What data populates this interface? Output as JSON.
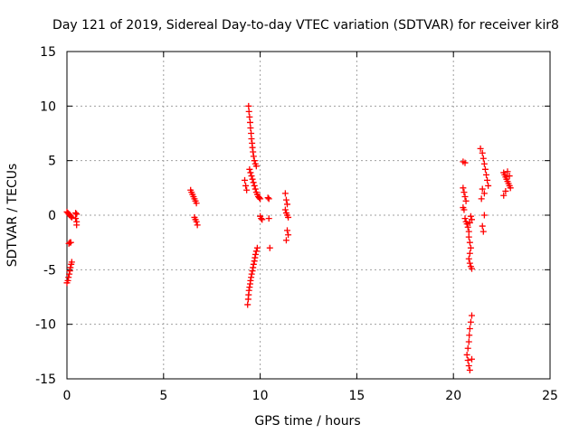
{
  "chart_data": {
    "type": "scatter",
    "title": "Day 121 of 2019, Sidereal Day-to-day VTEC variation (SDTVAR) for receiver kir8",
    "xlabel": "GPS time / hours",
    "ylabel": "SDTVAR / TECUs",
    "xlim": [
      0,
      25
    ],
    "ylim": [
      -15,
      15
    ],
    "xticks": [
      "0",
      "5",
      "10",
      "15",
      "20",
      "25"
    ],
    "yticks": [
      "15",
      "10",
      "5",
      "0",
      "-5",
      "-10",
      "-15"
    ],
    "xtick_values": [
      0,
      5,
      10,
      15,
      20,
      25
    ],
    "ytick_values": [
      15,
      10,
      5,
      0,
      -5,
      -10,
      -15
    ],
    "grid": true,
    "marker": "plus",
    "series": [
      {
        "name": "SDTVAR",
        "color": "#ff0000",
        "points": [
          [
            0.0,
            0.3
          ],
          [
            0.05,
            0.2
          ],
          [
            0.1,
            0.1
          ],
          [
            0.15,
            0.0
          ],
          [
            0.2,
            -0.1
          ],
          [
            0.25,
            -0.2
          ],
          [
            0.0,
            -6.2
          ],
          [
            0.05,
            -6.0
          ],
          [
            0.08,
            -5.7
          ],
          [
            0.12,
            -5.4
          ],
          [
            0.15,
            -5.1
          ],
          [
            0.18,
            -4.8
          ],
          [
            0.22,
            -4.5
          ],
          [
            0.25,
            -4.3
          ],
          [
            0.1,
            -2.6
          ],
          [
            0.15,
            -2.5
          ],
          [
            0.2,
            -2.5
          ],
          [
            0.45,
            0.2
          ],
          [
            0.5,
            0.1
          ],
          [
            0.45,
            -0.3
          ],
          [
            0.5,
            -0.6
          ],
          [
            0.5,
            -0.9
          ],
          [
            6.4,
            2.3
          ],
          [
            6.45,
            2.1
          ],
          [
            6.5,
            1.9
          ],
          [
            6.55,
            1.7
          ],
          [
            6.6,
            1.5
          ],
          [
            6.65,
            1.3
          ],
          [
            6.7,
            1.1
          ],
          [
            6.6,
            -0.2
          ],
          [
            6.65,
            -0.4
          ],
          [
            6.7,
            -0.6
          ],
          [
            6.75,
            -0.9
          ],
          [
            9.2,
            3.2
          ],
          [
            9.25,
            2.7
          ],
          [
            9.3,
            2.3
          ],
          [
            9.4,
            10.0
          ],
          [
            9.42,
            9.5
          ],
          [
            9.45,
            9.0
          ],
          [
            9.48,
            8.5
          ],
          [
            9.5,
            8.0
          ],
          [
            9.53,
            7.5
          ],
          [
            9.55,
            7.0
          ],
          [
            9.58,
            6.6
          ],
          [
            9.6,
            6.2
          ],
          [
            9.63,
            5.8
          ],
          [
            9.66,
            5.4
          ],
          [
            9.7,
            5.0
          ],
          [
            9.75,
            4.7
          ],
          [
            9.8,
            4.5
          ],
          [
            9.45,
            4.2
          ],
          [
            9.5,
            3.9
          ],
          [
            9.55,
            3.6
          ],
          [
            9.6,
            3.3
          ],
          [
            9.65,
            3.0
          ],
          [
            9.7,
            2.7
          ],
          [
            9.75,
            2.4
          ],
          [
            9.8,
            2.1
          ],
          [
            9.85,
            1.9
          ],
          [
            9.9,
            1.7
          ],
          [
            9.95,
            1.6
          ],
          [
            10.0,
            1.5
          ],
          [
            10.0,
            -0.1
          ],
          [
            10.05,
            -0.3
          ],
          [
            10.1,
            -0.4
          ],
          [
            10.4,
            1.6
          ],
          [
            10.45,
            1.5
          ],
          [
            10.45,
            -0.3
          ],
          [
            10.5,
            -3.0
          ],
          [
            9.35,
            -8.2
          ],
          [
            9.38,
            -7.7
          ],
          [
            9.4,
            -7.3
          ],
          [
            9.42,
            -6.9
          ],
          [
            9.45,
            -6.6
          ],
          [
            9.48,
            -6.3
          ],
          [
            9.5,
            -6.0
          ],
          [
            9.53,
            -5.7
          ],
          [
            9.56,
            -5.4
          ],
          [
            9.6,
            -5.1
          ],
          [
            9.63,
            -4.8
          ],
          [
            9.66,
            -4.5
          ],
          [
            9.7,
            -4.2
          ],
          [
            9.73,
            -3.9
          ],
          [
            9.76,
            -3.6
          ],
          [
            9.8,
            -3.3
          ],
          [
            9.85,
            -3.0
          ],
          [
            11.3,
            2.0
          ],
          [
            11.35,
            1.4
          ],
          [
            11.4,
            1.0
          ],
          [
            11.3,
            0.5
          ],
          [
            11.35,
            0.2
          ],
          [
            11.4,
            0.0
          ],
          [
            11.45,
            -0.2
          ],
          [
            11.4,
            -1.4
          ],
          [
            11.45,
            -1.8
          ],
          [
            11.35,
            -2.3
          ],
          [
            20.5,
            4.9
          ],
          [
            20.6,
            4.8
          ],
          [
            20.5,
            2.5
          ],
          [
            20.55,
            2.1
          ],
          [
            20.6,
            1.7
          ],
          [
            20.65,
            1.3
          ],
          [
            20.5,
            0.7
          ],
          [
            20.55,
            0.5
          ],
          [
            20.6,
            -0.3
          ],
          [
            20.65,
            -0.6
          ],
          [
            20.7,
            -0.8
          ],
          [
            20.75,
            -1.1
          ],
          [
            20.8,
            -1.5
          ],
          [
            20.8,
            -2.0
          ],
          [
            20.85,
            -2.5
          ],
          [
            20.9,
            -3.0
          ],
          [
            20.85,
            -3.5
          ],
          [
            20.8,
            -4.0
          ],
          [
            20.85,
            -4.4
          ],
          [
            20.9,
            -4.7
          ],
          [
            20.95,
            -4.9
          ],
          [
            20.9,
            -0.1
          ],
          [
            20.95,
            -0.4
          ],
          [
            20.85,
            -0.7
          ],
          [
            20.95,
            -9.2
          ],
          [
            20.9,
            -9.8
          ],
          [
            20.85,
            -10.4
          ],
          [
            20.82,
            -11.0
          ],
          [
            20.8,
            -11.6
          ],
          [
            20.75,
            -12.2
          ],
          [
            20.7,
            -12.8
          ],
          [
            20.75,
            -13.3
          ],
          [
            20.8,
            -13.8
          ],
          [
            20.85,
            -14.2
          ],
          [
            20.95,
            -13.2
          ],
          [
            21.4,
            6.1
          ],
          [
            21.5,
            5.7
          ],
          [
            21.55,
            5.2
          ],
          [
            21.6,
            4.7
          ],
          [
            21.65,
            4.2
          ],
          [
            21.7,
            3.7
          ],
          [
            21.75,
            3.2
          ],
          [
            21.8,
            2.7
          ],
          [
            21.5,
            2.4
          ],
          [
            21.6,
            2.0
          ],
          [
            21.45,
            1.5
          ],
          [
            21.5,
            -1.0
          ],
          [
            21.55,
            -1.5
          ],
          [
            21.6,
            0.0
          ],
          [
            22.6,
            3.9
          ],
          [
            22.65,
            3.7
          ],
          [
            22.7,
            3.5
          ],
          [
            22.75,
            3.3
          ],
          [
            22.8,
            3.1
          ],
          [
            22.85,
            2.9
          ],
          [
            22.9,
            2.7
          ],
          [
            22.95,
            2.5
          ],
          [
            22.7,
            2.2
          ],
          [
            22.6,
            1.8
          ],
          [
            22.8,
            4.0
          ],
          [
            22.9,
            3.6
          ]
        ]
      }
    ]
  }
}
